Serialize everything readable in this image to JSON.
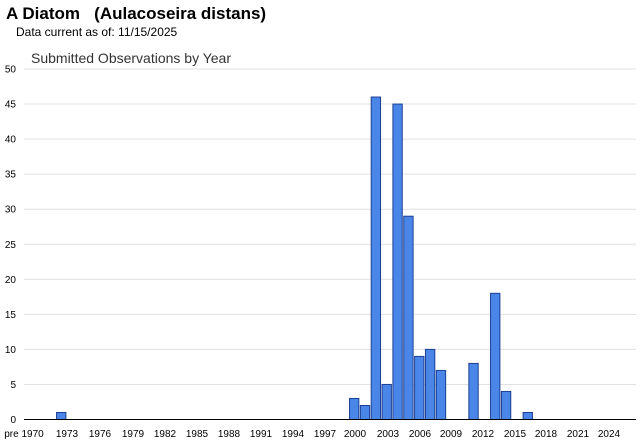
{
  "header": {
    "title": "A Diatom   (Aulacoseira distans)",
    "data_current": "Data current as of: 11/15/2025"
  },
  "colors": {
    "bar_fill": "#4a86e8",
    "bar_stroke": "#1c3f94",
    "grid": "#e0e0e0",
    "axis": "#000000"
  },
  "chart_data": {
    "type": "bar",
    "title": "Submitted Observations by Year",
    "xlabel": "",
    "ylabel": "",
    "ylim": [
      0,
      50
    ],
    "yticks": [
      0,
      5,
      10,
      15,
      20,
      25,
      30,
      35,
      40,
      45,
      50
    ],
    "grid": true,
    "x_tick_labels": [
      "pre 1970",
      "1973",
      "1976",
      "1979",
      "1982",
      "1985",
      "1988",
      "1991",
      "1994",
      "1997",
      "2000",
      "2003",
      "2006",
      "2009",
      "2012",
      "2015",
      "2018",
      "2021",
      "2024"
    ],
    "categories": [
      "pre 1970",
      "1970",
      "1971",
      "1972",
      "1973",
      "1974",
      "1975",
      "1976",
      "1977",
      "1978",
      "1979",
      "1980",
      "1981",
      "1982",
      "1983",
      "1984",
      "1985",
      "1986",
      "1987",
      "1988",
      "1989",
      "1990",
      "1991",
      "1992",
      "1993",
      "1994",
      "1995",
      "1996",
      "1997",
      "1998",
      "1999",
      "2000",
      "2001",
      "2002",
      "2003",
      "2004",
      "2005",
      "2006",
      "2007",
      "2008",
      "2009",
      "2010",
      "2011",
      "2012",
      "2013",
      "2014",
      "2015",
      "2016",
      "2017",
      "2018",
      "2019",
      "2020",
      "2021",
      "2022",
      "2023",
      "2024",
      "2025"
    ],
    "values": [
      0,
      0,
      0,
      1,
      0,
      0,
      0,
      0,
      0,
      0,
      0,
      0,
      0,
      0,
      0,
      0,
      0,
      0,
      0,
      0,
      0,
      0,
      0,
      0,
      0,
      0,
      0,
      0,
      0,
      0,
      3,
      2,
      46,
      5,
      45,
      29,
      9,
      10,
      7,
      0,
      0,
      8,
      0,
      18,
      4,
      0,
      1,
      0,
      0,
      0,
      0,
      0,
      0,
      0,
      0,
      0,
      0
    ]
  }
}
